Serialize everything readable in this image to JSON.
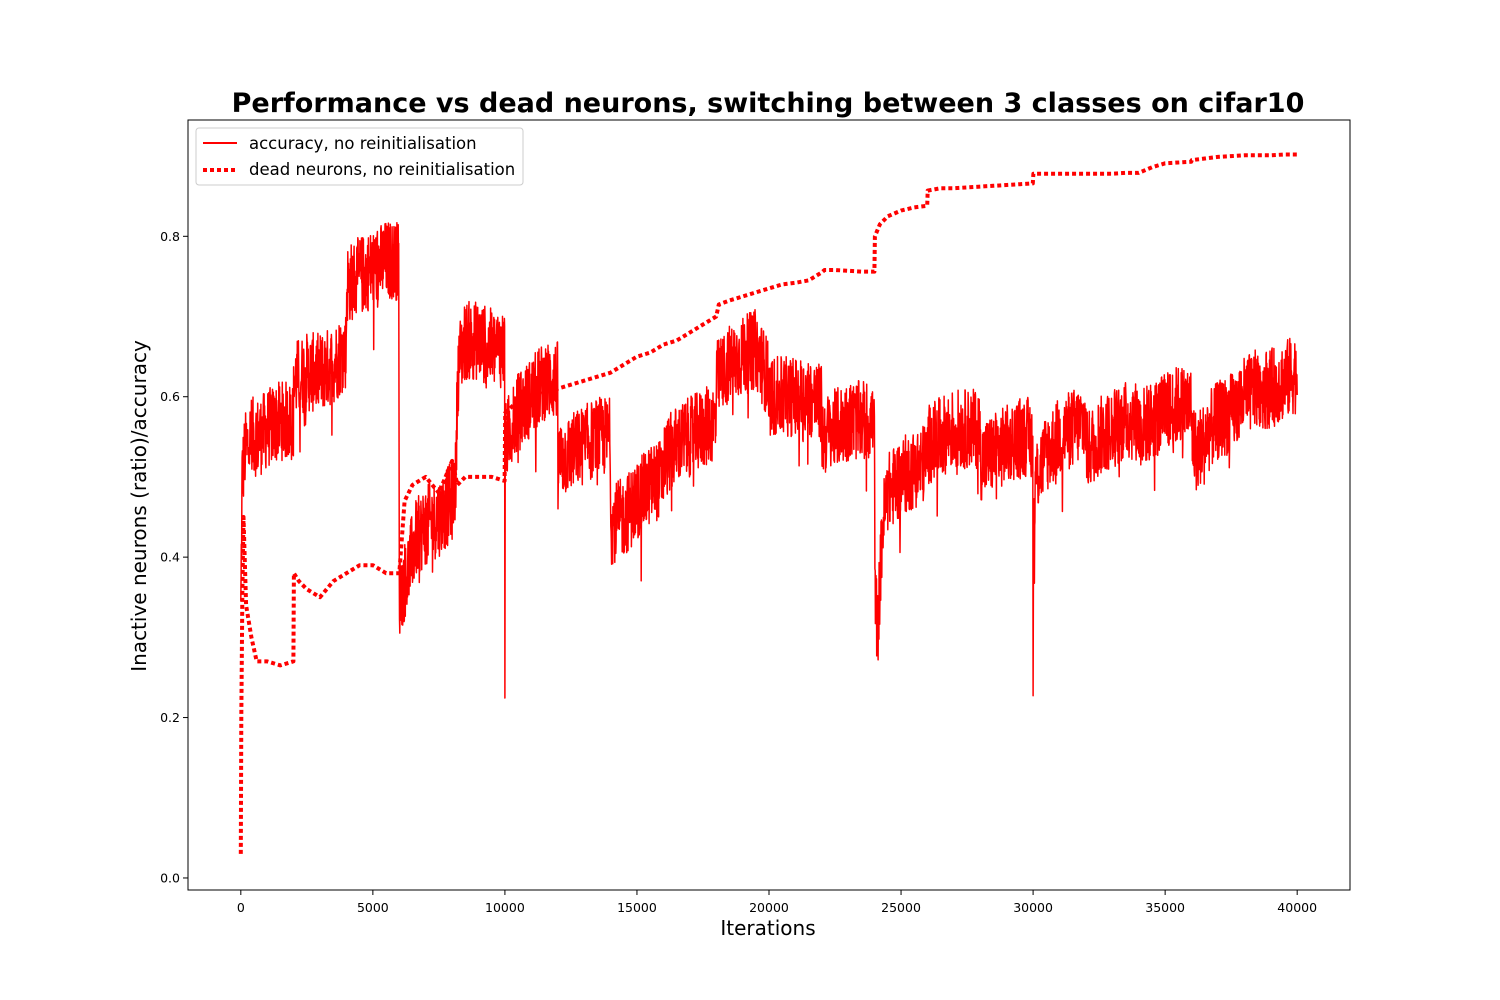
{
  "chart_data": {
    "type": "line",
    "title": "Performance vs dead neurons, switching between 3 classes on cifar10",
    "xlabel": "Iterations",
    "ylabel": "Inactive neurons (ratio)/accuracy",
    "xlim": [
      -2000,
      42000
    ],
    "ylim": [
      -0.015,
      0.945
    ],
    "x_ticks": [
      0,
      5000,
      10000,
      15000,
      20000,
      25000,
      30000,
      35000,
      40000
    ],
    "x_tick_labels": [
      "0",
      "5000",
      "10000",
      "15000",
      "20000",
      "25000",
      "30000",
      "35000",
      "40000"
    ],
    "y_ticks": [
      0.0,
      0.2,
      0.4,
      0.6,
      0.8
    ],
    "y_tick_labels": [
      "0.0",
      "0.2",
      "0.4",
      "0.6",
      "0.8"
    ],
    "grid": false,
    "legend_position": "top-left",
    "line_color": "#ff0000",
    "series": [
      {
        "name": "accuracy, no reinitialisation",
        "style": "solid",
        "noise": 0.05,
        "x": [
          0,
          50,
          150,
          400,
          700,
          1000,
          1500,
          1990,
          2010,
          2500,
          3000,
          3500,
          3990,
          4010,
          4500,
          5000,
          5500,
          5980,
          6000,
          6300,
          6600,
          7000,
          7500,
          8000,
          8150,
          8200,
          8300,
          8500,
          9000,
          9500,
          9990,
          10000,
          10010,
          10200,
          10500,
          11000,
          11500,
          11990,
          12010,
          12500,
          13000,
          13500,
          13990,
          14010,
          14500,
          15000,
          15500,
          15990,
          16010,
          16500,
          17000,
          17500,
          17990,
          18010,
          18500,
          19000,
          19500,
          19990,
          20010,
          20500,
          21000,
          21500,
          21990,
          22010,
          22500,
          23000,
          23500,
          23990,
          24010,
          24100,
          24300,
          24500,
          25000,
          25500,
          25990,
          26010,
          26500,
          27000,
          27500,
          27990,
          28010,
          28500,
          29000,
          29500,
          29990,
          30000,
          30010,
          30100,
          30500,
          31000,
          31500,
          31990,
          32010,
          32500,
          33000,
          33500,
          33990,
          34010,
          34500,
          35000,
          35500,
          35990,
          36010,
          36200,
          36500,
          37000,
          37500,
          38000,
          38500,
          39000,
          39500,
          40000
        ],
        "values": [
          0.33,
          0.5,
          0.53,
          0.55,
          0.55,
          0.56,
          0.57,
          0.57,
          0.62,
          0.63,
          0.63,
          0.64,
          0.66,
          0.74,
          0.75,
          0.76,
          0.77,
          0.77,
          0.35,
          0.38,
          0.42,
          0.44,
          0.45,
          0.47,
          0.5,
          0.62,
          0.65,
          0.67,
          0.67,
          0.66,
          0.66,
          0.2,
          0.54,
          0.56,
          0.58,
          0.6,
          0.62,
          0.62,
          0.52,
          0.53,
          0.54,
          0.55,
          0.55,
          0.44,
          0.45,
          0.47,
          0.49,
          0.5,
          0.52,
          0.54,
          0.55,
          0.56,
          0.57,
          0.62,
          0.64,
          0.65,
          0.66,
          0.62,
          0.6,
          0.6,
          0.6,
          0.6,
          0.59,
          0.55,
          0.56,
          0.57,
          0.57,
          0.57,
          0.38,
          0.3,
          0.44,
          0.48,
          0.5,
          0.51,
          0.52,
          0.54,
          0.55,
          0.56,
          0.56,
          0.56,
          0.52,
          0.53,
          0.54,
          0.55,
          0.55,
          0.19,
          0.42,
          0.5,
          0.53,
          0.55,
          0.56,
          0.57,
          0.53,
          0.55,
          0.56,
          0.57,
          0.57,
          0.56,
          0.57,
          0.58,
          0.59,
          0.59,
          0.55,
          0.53,
          0.55,
          0.57,
          0.58,
          0.6,
          0.61,
          0.61,
          0.62,
          0.63
        ]
      },
      {
        "name": "dead neurons, no reinitialisation",
        "style": "dotted",
        "x": [
          0,
          20,
          60,
          100,
          200,
          400,
          600,
          1000,
          1500,
          1990,
          2010,
          2200,
          2500,
          3000,
          3500,
          4000,
          4500,
          5000,
          5500,
          6000,
          6200,
          6500,
          7000,
          7500,
          8000,
          8200,
          8500,
          9000,
          9500,
          9990,
          10010,
          10500,
          11000,
          11500,
          12000,
          12500,
          13000,
          13500,
          14000,
          14500,
          15000,
          15500,
          16000,
          16500,
          17000,
          17500,
          18000,
          18100,
          18500,
          19000,
          19500,
          20000,
          20500,
          21000,
          21500,
          22000,
          22100,
          22500,
          23000,
          23500,
          23990,
          24010,
          24200,
          24500,
          25000,
          25500,
          25990,
          26010,
          26500,
          27000,
          27500,
          28000,
          28500,
          29000,
          29500,
          29990,
          30010,
          31000,
          32000,
          33000,
          33500,
          34000,
          34500,
          35000,
          35500,
          35990,
          36010,
          36500,
          37000,
          37500,
          38000,
          38500,
          39000,
          39500,
          40000
        ],
        "values": [
          0.03,
          0.2,
          0.36,
          0.45,
          0.34,
          0.3,
          0.27,
          0.27,
          0.265,
          0.27,
          0.38,
          0.37,
          0.36,
          0.35,
          0.37,
          0.38,
          0.39,
          0.39,
          0.38,
          0.38,
          0.47,
          0.49,
          0.5,
          0.48,
          0.52,
          0.49,
          0.5,
          0.5,
          0.5,
          0.495,
          0.58,
          0.595,
          0.6,
          0.605,
          0.61,
          0.615,
          0.62,
          0.625,
          0.63,
          0.64,
          0.65,
          0.655,
          0.665,
          0.67,
          0.68,
          0.69,
          0.7,
          0.715,
          0.72,
          0.725,
          0.73,
          0.735,
          0.74,
          0.742,
          0.745,
          0.755,
          0.758,
          0.758,
          0.757,
          0.756,
          0.756,
          0.8,
          0.815,
          0.825,
          0.832,
          0.836,
          0.838,
          0.857,
          0.86,
          0.86,
          0.861,
          0.862,
          0.863,
          0.864,
          0.865,
          0.866,
          0.878,
          0.878,
          0.878,
          0.878,
          0.879,
          0.879,
          0.886,
          0.891,
          0.892,
          0.893,
          0.895,
          0.897,
          0.899,
          0.9,
          0.901,
          0.901,
          0.901,
          0.902,
          0.902
        ]
      }
    ]
  }
}
